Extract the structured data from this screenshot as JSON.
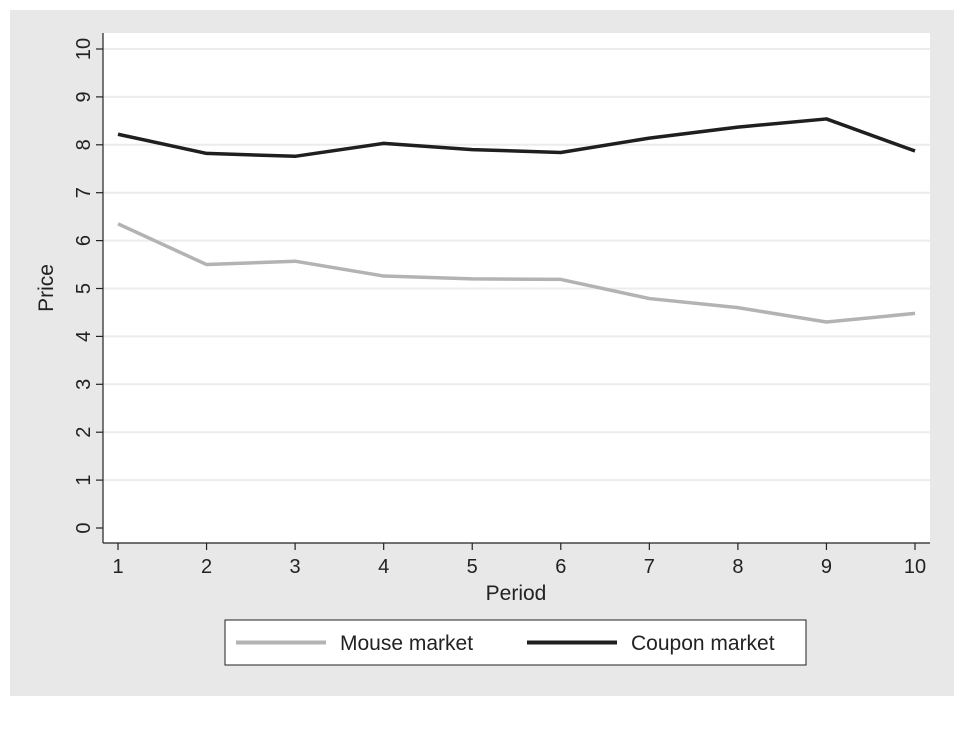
{
  "chart_data": {
    "type": "line",
    "xlabel": "Period",
    "ylabel": "Price",
    "x": [
      1,
      2,
      3,
      4,
      5,
      6,
      7,
      8,
      9,
      10
    ],
    "xlim": [
      1,
      10
    ],
    "ylim": [
      0,
      10
    ],
    "yticks": [
      0,
      1,
      2,
      3,
      4,
      5,
      6,
      7,
      8,
      9,
      10
    ],
    "grid": true,
    "legend_position": "bottom",
    "series": [
      {
        "name": "Mouse market",
        "color": "#b3b3b3",
        "values": [
          6.35,
          5.5,
          5.57,
          5.26,
          5.2,
          5.19,
          4.79,
          4.6,
          4.3,
          4.48
        ]
      },
      {
        "name": "Coupon market",
        "color": "#1f1f1f",
        "values": [
          8.22,
          7.82,
          7.76,
          8.03,
          7.9,
          7.84,
          8.14,
          8.37,
          8.54,
          7.87
        ]
      }
    ],
    "colors": {
      "frame_background": "#e8e8e8",
      "plot_background": "#ffffff",
      "gridline": "#ececec",
      "axis": "#222222"
    }
  }
}
